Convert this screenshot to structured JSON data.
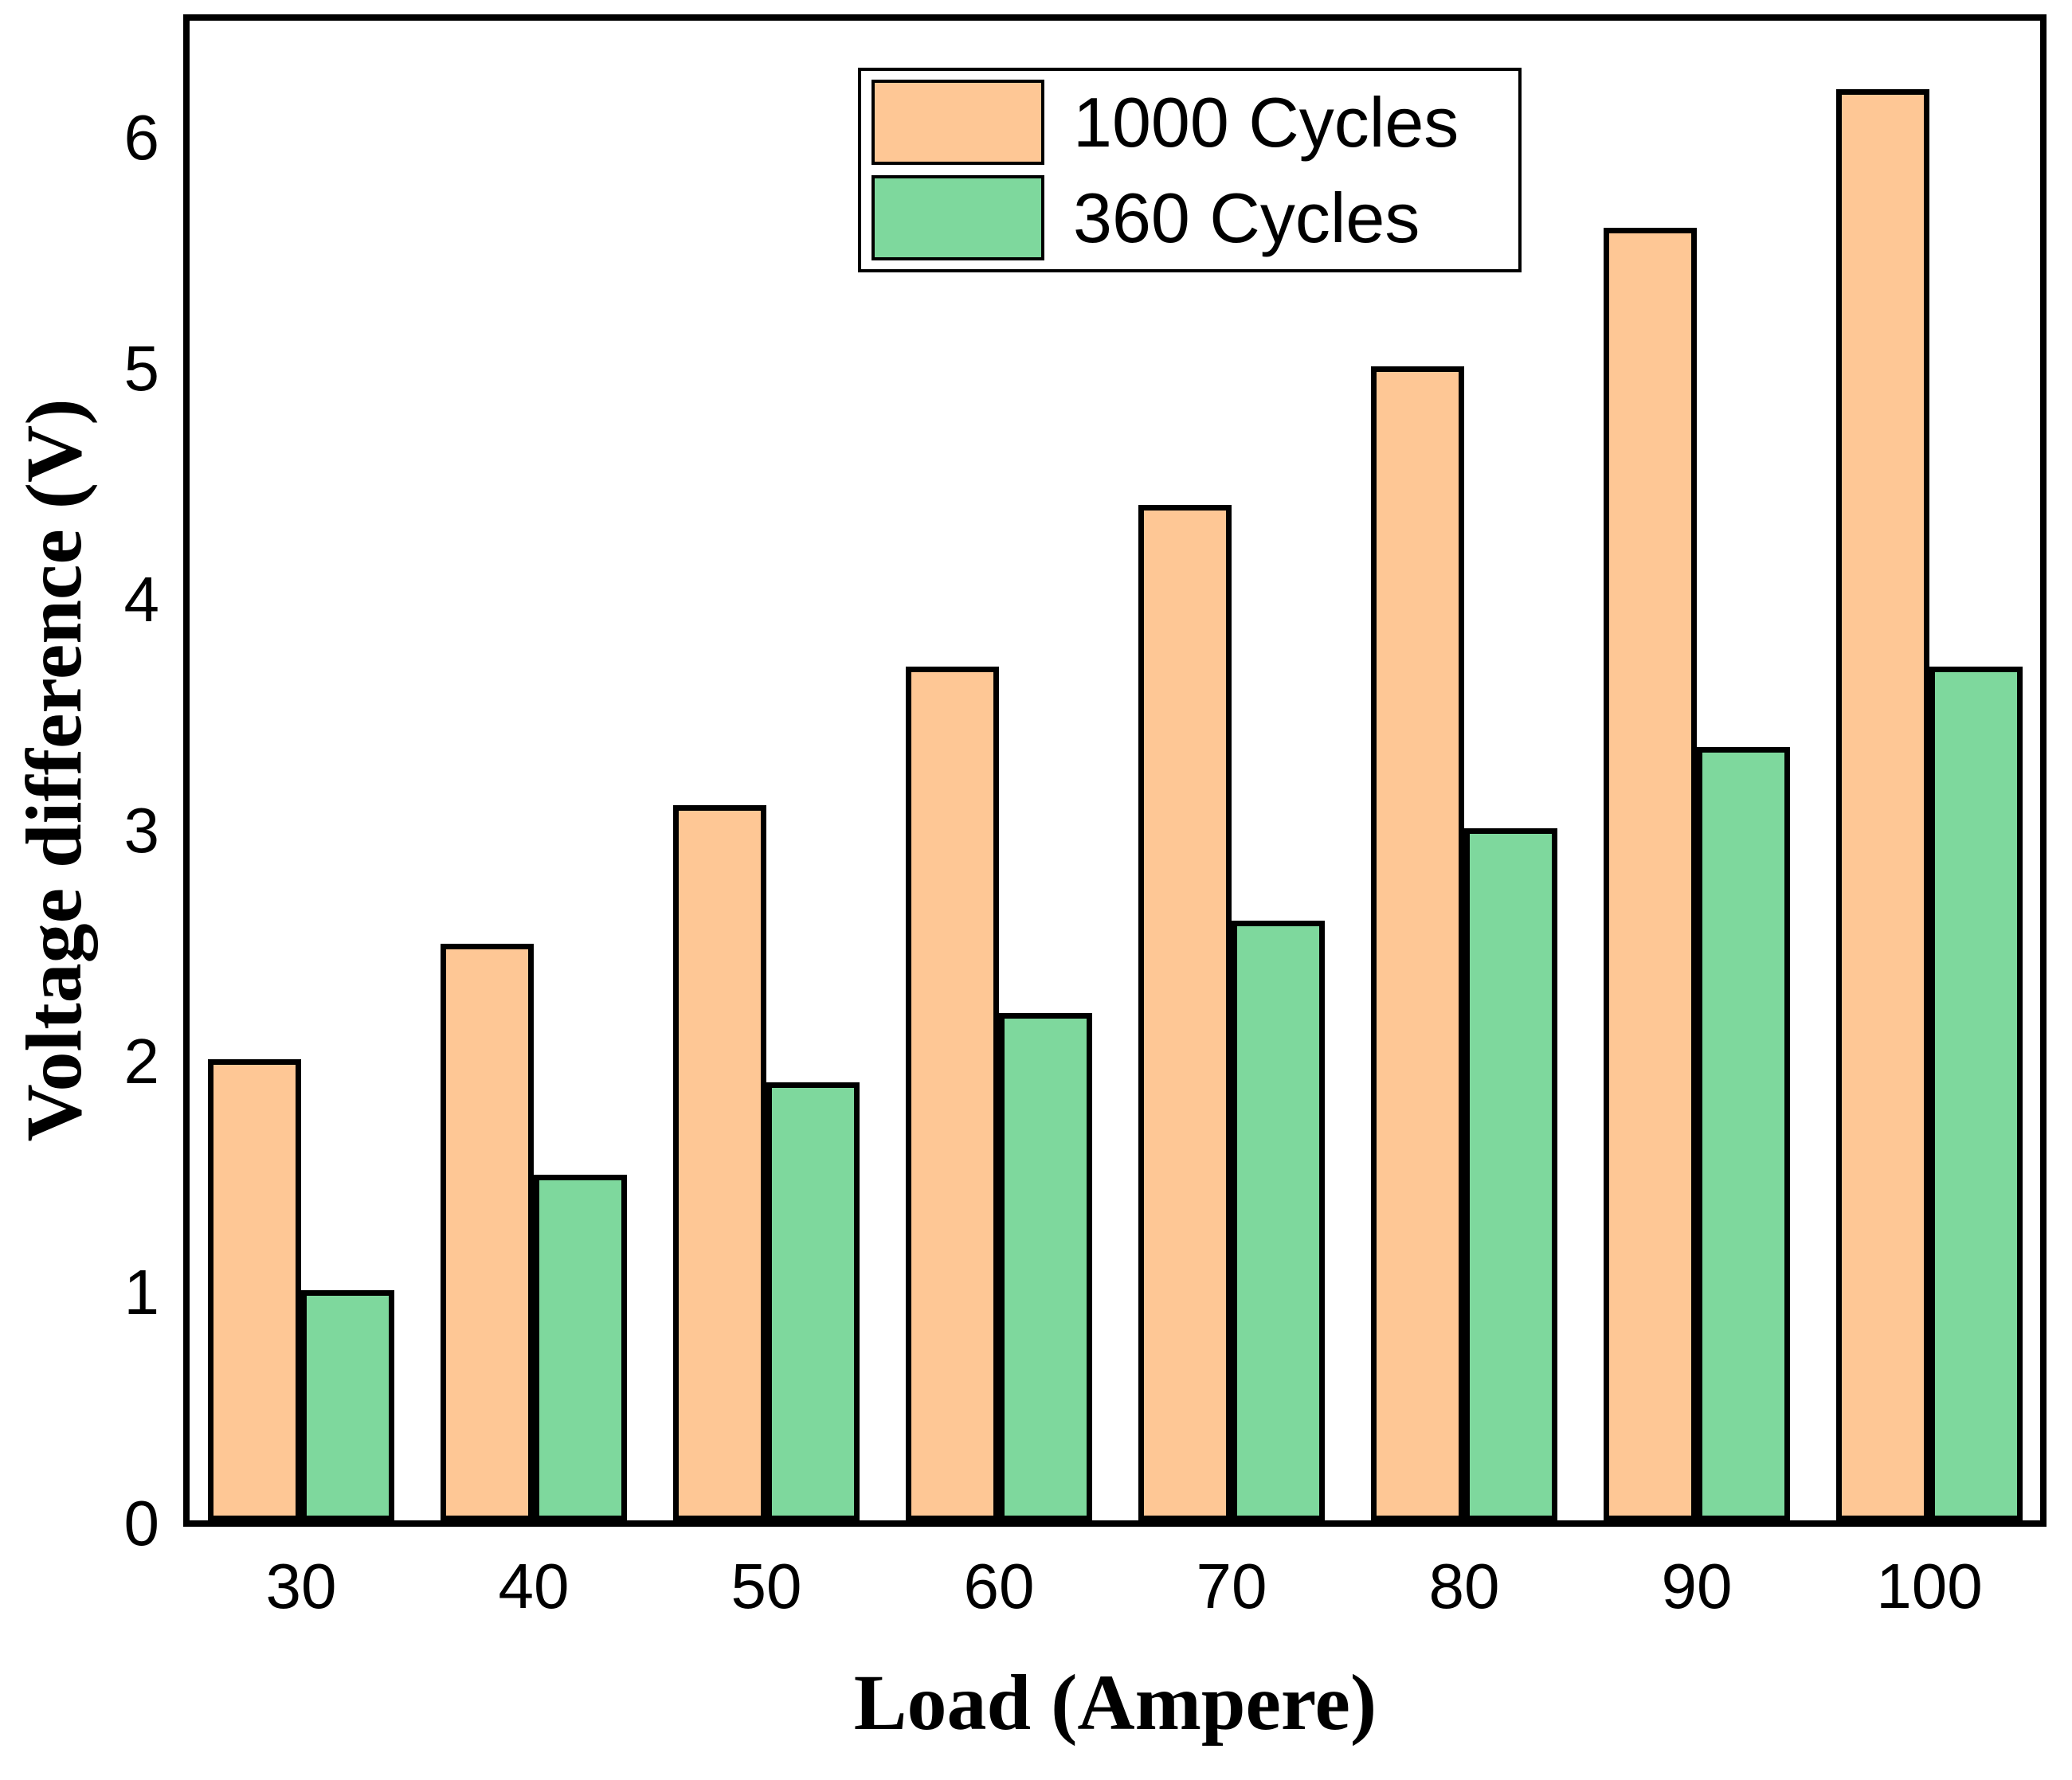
{
  "chart_data": {
    "type": "bar",
    "title": "",
    "xlabel": "Load (Ampere)",
    "ylabel": "Voltage difference (V)",
    "categories": [
      "30",
      "40",
      "50",
      "60",
      "70",
      "80",
      "90",
      "100"
    ],
    "series": [
      {
        "name": "1000 Cycles",
        "color": "#FEC795",
        "values": [
          2.0,
          2.5,
          3.1,
          3.7,
          4.4,
          5.0,
          5.6,
          6.2
        ]
      },
      {
        "name": "360 Cycles",
        "color": "#7ED89D",
        "values": [
          1.0,
          1.5,
          1.9,
          2.2,
          2.6,
          3.0,
          3.35,
          3.7
        ]
      }
    ],
    "bar_outline_color": "#000000",
    "yticks": [
      "0",
      "1",
      "2",
      "3",
      "4",
      "5",
      "6"
    ],
    "ylim": [
      0,
      6.52
    ],
    "grid": false,
    "legend_position": "top-center",
    "plot_background": "#ffffff"
  }
}
